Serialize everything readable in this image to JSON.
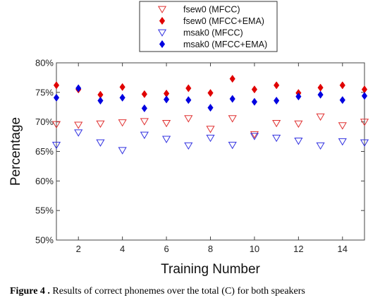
{
  "caption": {
    "label": "Figure 4 .",
    "text": "Results of correct phonemes over the total (C) for both speakers"
  },
  "chart_data": {
    "type": "scatter",
    "xlabel": "Training Number",
    "ylabel": "Percentage",
    "xlim": [
      1,
      15
    ],
    "ylim": [
      50,
      80
    ],
    "x_ticks": [
      2,
      4,
      6,
      8,
      10,
      12,
      14
    ],
    "y_ticks": [
      50,
      55,
      60,
      65,
      70,
      75,
      80
    ],
    "y_tick_labels": [
      "50%",
      "55%",
      "60%",
      "65%",
      "70%",
      "75%",
      "80%"
    ],
    "grid": false,
    "legend_position": "top-center",
    "x": [
      1,
      2,
      3,
      4,
      5,
      6,
      7,
      8,
      9,
      10,
      11,
      12,
      13,
      14,
      15
    ],
    "series": [
      {
        "name": "fsew0 (MFCC)",
        "color": "#e03030",
        "marker": "triangle-down-open",
        "values": [
          69.6,
          69.5,
          69.7,
          69.9,
          70.1,
          69.8,
          70.6,
          68.8,
          70.6,
          67.9,
          69.8,
          69.7,
          70.9,
          69.4,
          70.0
        ]
      },
      {
        "name": "fsew0 (MFCC+EMA)",
        "color": "#e00000",
        "marker": "diamond-filled",
        "values": [
          76.2,
          75.5,
          74.6,
          75.9,
          74.7,
          74.8,
          75.7,
          74.9,
          77.3,
          75.5,
          76.2,
          74.9,
          75.8,
          76.2,
          75.5
        ]
      },
      {
        "name": "msak0 (MFCC)",
        "color": "#3030e0",
        "marker": "triangle-down-open",
        "values": [
          66.1,
          68.2,
          66.5,
          65.2,
          67.8,
          67.1,
          66.0,
          67.3,
          66.1,
          67.6,
          67.3,
          66.8,
          66.0,
          66.7,
          66.5
        ]
      },
      {
        "name": "msak0 (MFCC+EMA)",
        "color": "#0000e0",
        "marker": "diamond-filled",
        "values": [
          74.1,
          75.7,
          73.6,
          74.1,
          72.3,
          73.8,
          73.7,
          72.4,
          73.9,
          73.4,
          73.6,
          74.3,
          74.6,
          73.7,
          74.4
        ]
      }
    ]
  }
}
